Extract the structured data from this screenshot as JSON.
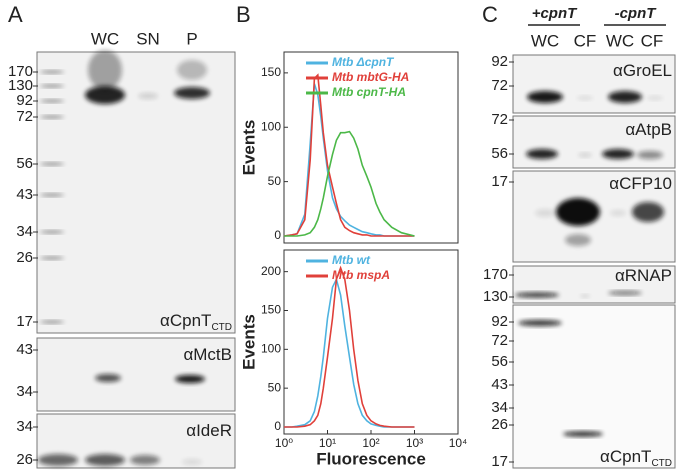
{
  "panel_a": {
    "label": "A",
    "lanes": [
      "WC",
      "SN",
      "P"
    ],
    "blots": [
      {
        "markers": [
          "170",
          "130",
          "92",
          "72",
          "56",
          "43",
          "34",
          "26",
          "17"
        ],
        "antibody": "αCpnT",
        "subscript": "CTD"
      },
      {
        "markers": [
          "43",
          "34"
        ],
        "antibody": "αMctB"
      },
      {
        "markers": [
          "34",
          "26"
        ],
        "antibody": "αIdeR"
      }
    ]
  },
  "panel_b": {
    "label": "B"
  },
  "chart_data": [
    {
      "type": "line",
      "ylabel": "Events",
      "log_x": true,
      "x": [
        1,
        1.5,
        2,
        3,
        4,
        5,
        6,
        7,
        8,
        10,
        13,
        16,
        20,
        25,
        32,
        40,
        50,
        63,
        80,
        100,
        130,
        160,
        200,
        300,
        500,
        1000
      ],
      "xlim": [
        1,
        10000
      ],
      "ylim": [
        0,
        160
      ],
      "yticks": [
        0,
        50,
        100,
        150
      ],
      "series": [
        {
          "name": "Mtb ΔcpnT",
          "color": "#4fb3e0",
          "values": [
            0,
            1,
            2,
            20,
            85,
            140,
            130,
            110,
            90,
            60,
            35,
            25,
            18,
            14,
            10,
            8,
            6,
            4,
            3,
            2,
            1,
            1,
            0,
            0,
            0,
            0
          ]
        },
        {
          "name": "Mtb mbtG-HA",
          "color": "#e0403a",
          "values": [
            0,
            1,
            2,
            15,
            70,
            145,
            148,
            120,
            95,
            65,
            45,
            30,
            15,
            8,
            5,
            3,
            2,
            1,
            1,
            0,
            0,
            0,
            0,
            0,
            0,
            0
          ]
        },
        {
          "name": "Mtb cpnT-HA",
          "color": "#4cb848",
          "values": [
            0,
            0,
            0,
            1,
            3,
            8,
            15,
            25,
            35,
            55,
            75,
            88,
            95,
            95,
            96,
            90,
            80,
            65,
            55,
            45,
            30,
            22,
            15,
            8,
            3,
            0
          ]
        }
      ]
    },
    {
      "type": "line",
      "ylabel": "Events",
      "xlabel": "Fluorescence",
      "log_x": true,
      "x": [
        1,
        1.5,
        2,
        3,
        4,
        5,
        6,
        7,
        8,
        10,
        13,
        16,
        20,
        25,
        32,
        40,
        50,
        63,
        80,
        100,
        130,
        160,
        200,
        300,
        500,
        1000
      ],
      "xlim": [
        1,
        10000
      ],
      "xticks": [
        {
          "value": 1,
          "label": "10⁰"
        },
        {
          "value": 10,
          "label": "10¹"
        },
        {
          "value": 100,
          "label": "10²"
        },
        {
          "value": 1000,
          "label": "10³"
        },
        {
          "value": 10000,
          "label": "10⁴"
        }
      ],
      "ylim": [
        0,
        215
      ],
      "yticks": [
        0,
        50,
        100,
        150,
        200
      ],
      "series": [
        {
          "name": "Mtb wt",
          "color": "#4fb3e0",
          "values": [
            0,
            0,
            1,
            3,
            8,
            20,
            40,
            65,
            90,
            140,
            180,
            190,
            170,
            130,
            90,
            55,
            30,
            15,
            8,
            4,
            2,
            1,
            0,
            0,
            0,
            0
          ]
        },
        {
          "name": "Mtb mspA",
          "color": "#e0403a",
          "values": [
            0,
            0,
            0,
            1,
            3,
            8,
            15,
            30,
            50,
            90,
            140,
            190,
            205,
            190,
            150,
            100,
            60,
            30,
            15,
            8,
            4,
            2,
            1,
            0,
            0,
            0
          ]
        }
      ]
    }
  ],
  "panel_c": {
    "label": "C",
    "groups": [
      "+cpnT",
      "-cpnT"
    ],
    "lanes": [
      "WC",
      "CF",
      "WC",
      "CF"
    ],
    "blots": [
      {
        "markers": [
          "92",
          "72"
        ],
        "antibody": "αGroEL"
      },
      {
        "markers": [
          "72",
          "56"
        ],
        "antibody": "αAtpB"
      },
      {
        "markers": [
          "17"
        ],
        "antibody": "αCFP10"
      },
      {
        "markers": [
          "170",
          "130"
        ],
        "antibody": "αRNAP"
      },
      {
        "markers": [
          "92",
          "72",
          "56",
          "43",
          "34",
          "26",
          "17"
        ],
        "antibody": "αCpnT",
        "subscript": "CTD"
      }
    ]
  }
}
